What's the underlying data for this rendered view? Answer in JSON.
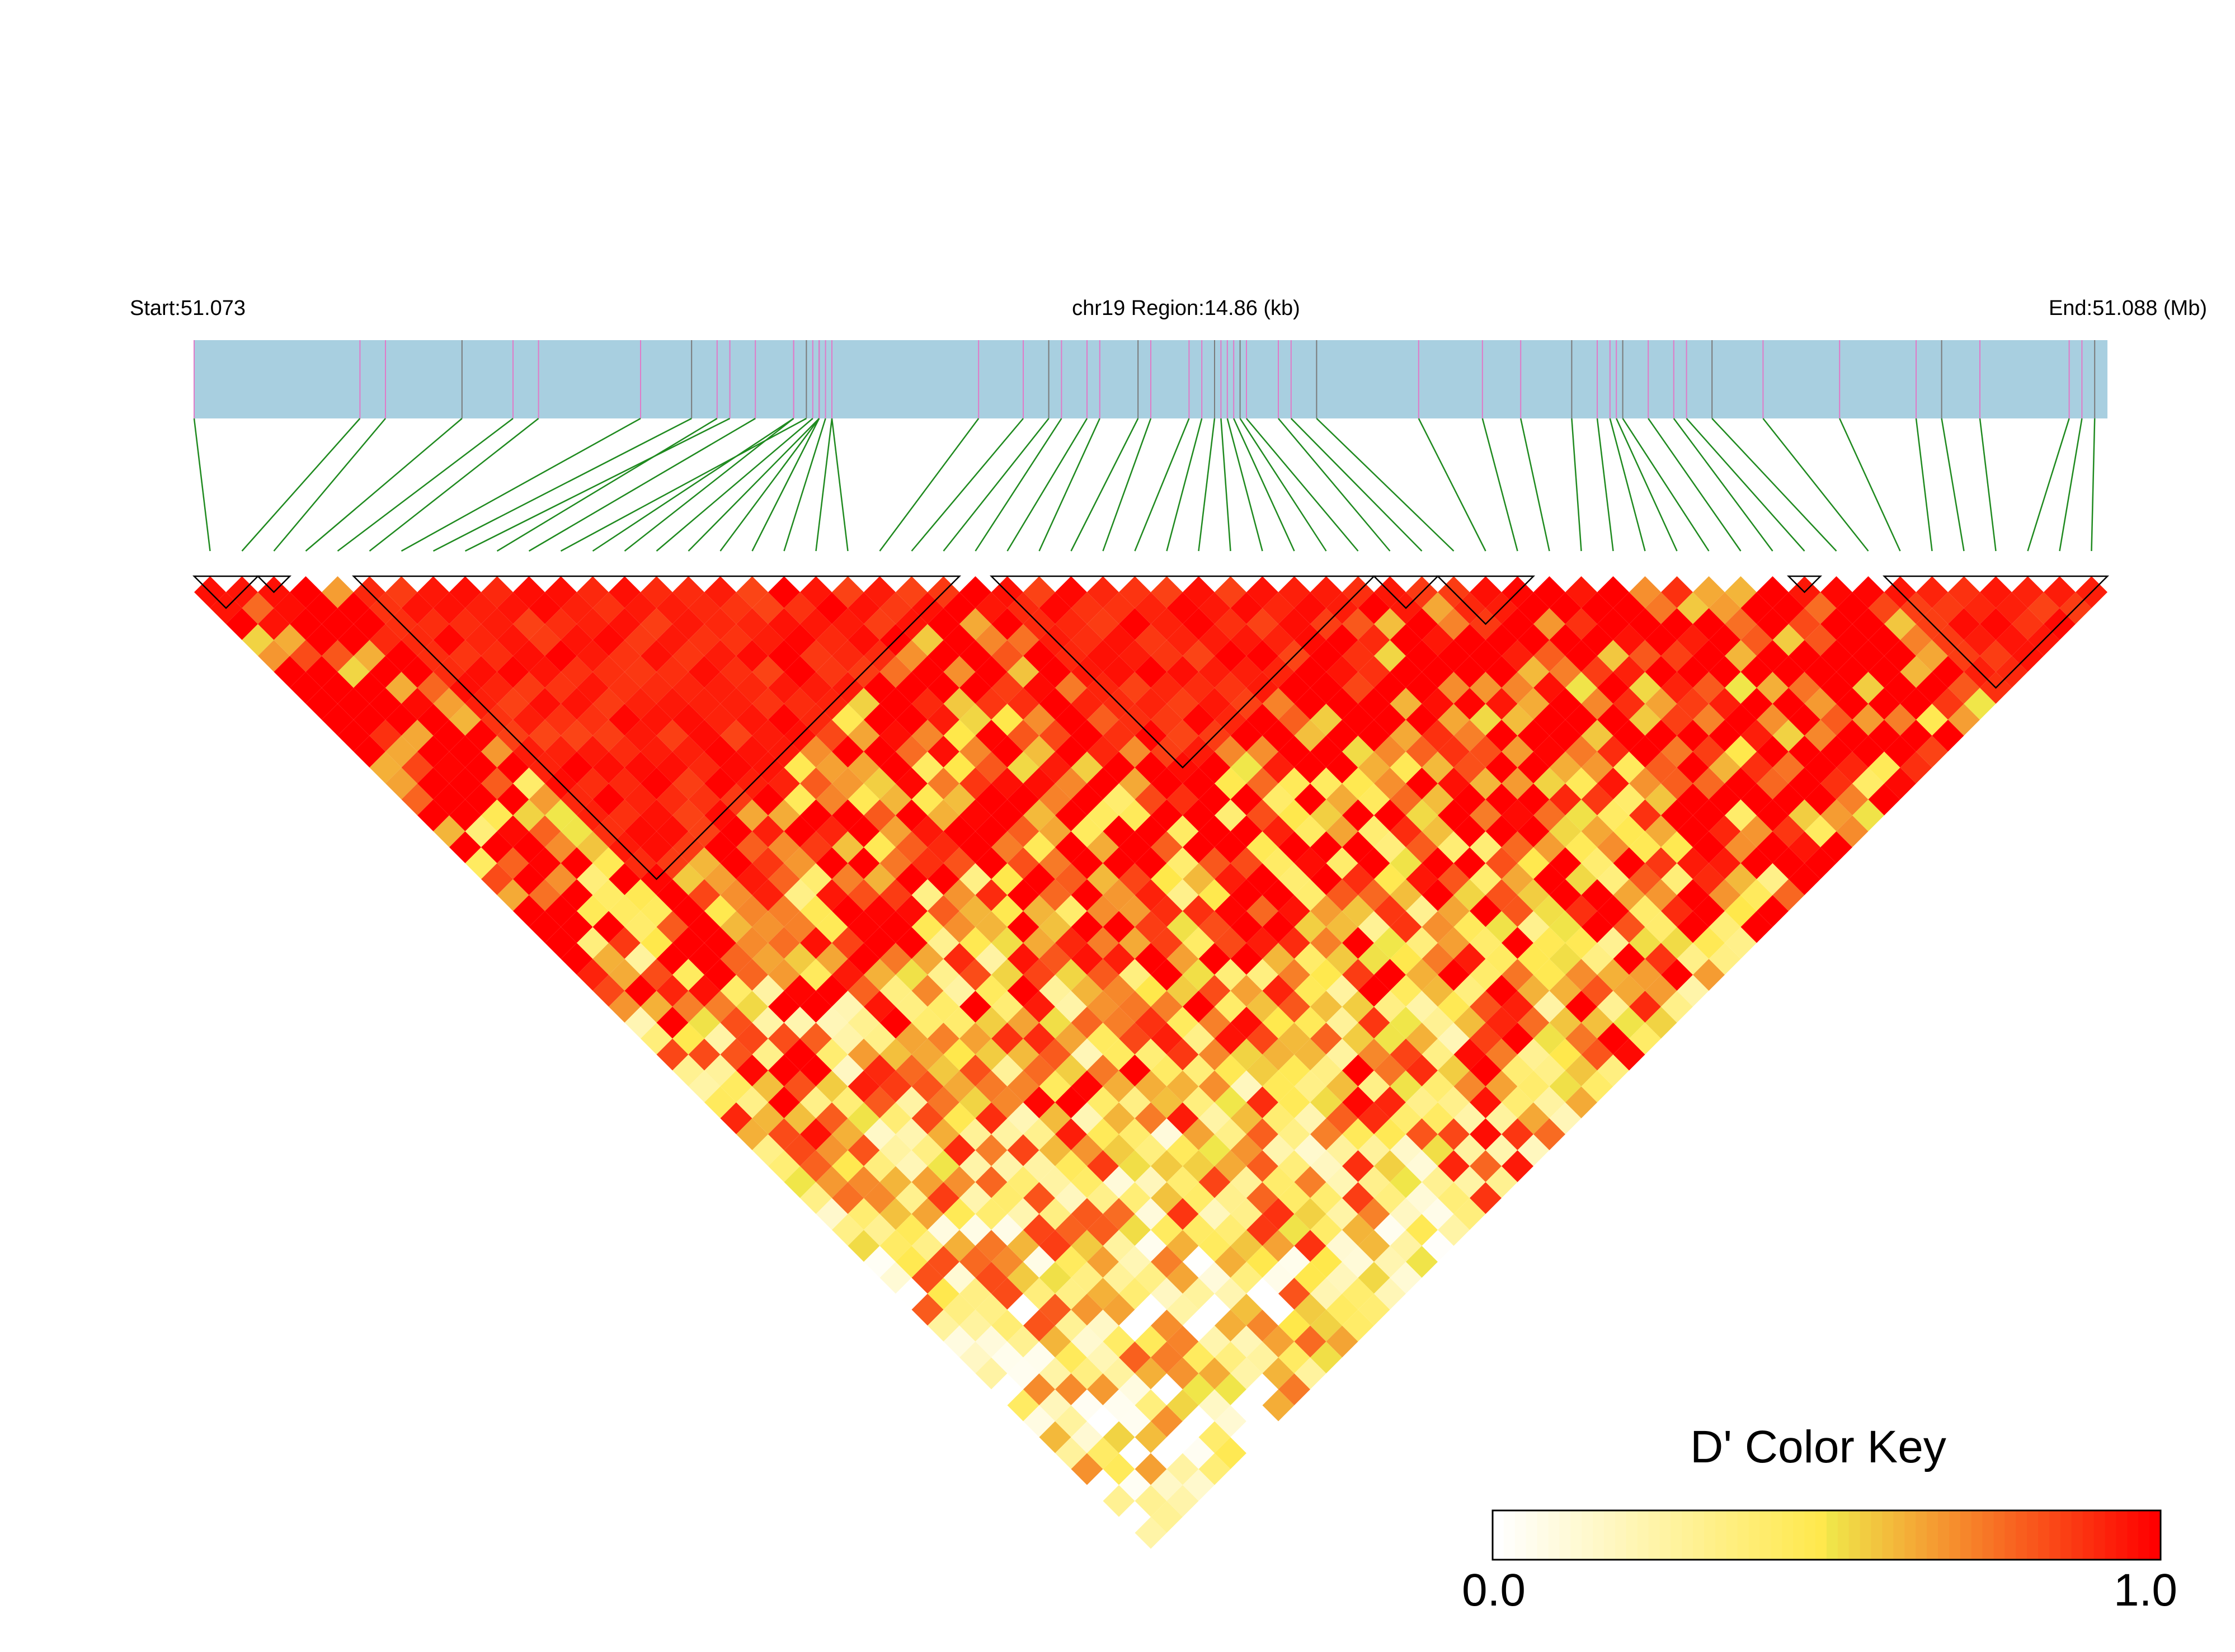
{
  "header": {
    "start_label": "Start:51.073",
    "region_label": "chr19 Region:14.86 (kb)",
    "end_label": "End:51.088 (Mb)"
  },
  "colors": {
    "track_fill": "#a8cfe0",
    "track_line_pink": "#e07ac8",
    "track_line_gray": "#7a7a7a",
    "connector": "#1f8a1f",
    "heat_low": "#ffffff",
    "heat_mid": "#f0e84a",
    "heat_high": "#ff0000",
    "block_outline": "#000000"
  },
  "color_key": {
    "title": "D' Color Key",
    "min_label": "0.0",
    "max_label": "1.0"
  },
  "chart_data": {
    "type": "heatmap",
    "title": "chr19 Region:14.86 (kb)",
    "chromosome": "chr19",
    "region_start_mb": 51.073,
    "region_end_mb": 51.088,
    "region_size_kb": 14.86,
    "snp_count": 60,
    "value_range": [
      0.0,
      1.0
    ],
    "value_label": "D'",
    "snp_positions_mb": [
      51.073,
      51.0743,
      51.0745,
      51.0751,
      51.0755,
      51.0757,
      51.0765,
      51.0769,
      51.0772,
      51.0771,
      51.0774,
      51.0778,
      51.0777,
      51.0777,
      51.07785,
      51.0779,
      51.0779,
      51.0779,
      51.07795,
      51.078,
      51.078,
      51.07915,
      51.0795,
      51.0797,
      51.0798,
      51.08,
      51.0801,
      51.0804,
      51.0805,
      51.0808,
      51.0809,
      51.081,
      51.08105,
      51.0811,
      51.08115,
      51.0812,
      51.08125,
      51.0815,
      51.0816,
      51.0818,
      51.0826,
      51.0831,
      51.0834,
      51.0838,
      51.084,
      51.0841,
      51.08415,
      51.0842,
      51.0844,
      51.0846,
      51.0847,
      51.0849,
      51.0853,
      51.0859,
      51.0865,
      51.0867,
      51.087,
      51.0877,
      51.0878,
      51.0879
    ],
    "ld_blocks_snp_ranges": [
      [
        0,
        2
      ],
      [
        2,
        3
      ],
      [
        5,
        24
      ],
      [
        25,
        37
      ],
      [
        37,
        39
      ],
      [
        39,
        42
      ],
      [
        50,
        51
      ],
      [
        53,
        60
      ]
    ]
  }
}
